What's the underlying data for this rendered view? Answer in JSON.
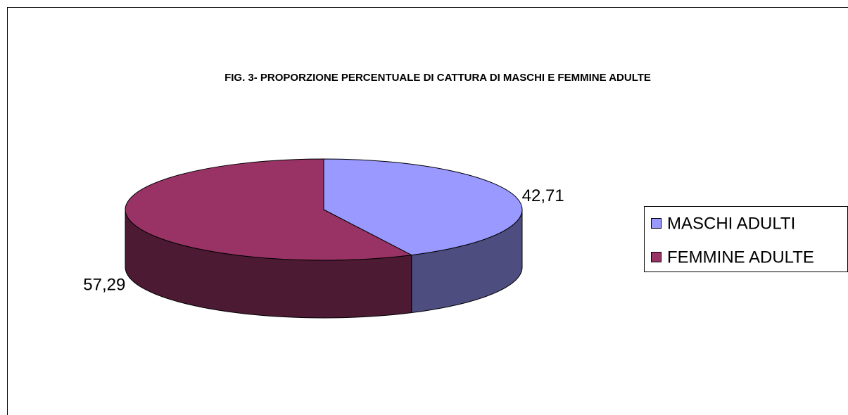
{
  "chart_data": {
    "type": "pie",
    "title": "FIG. 3- PROPORZIONE PERCENTUALE DI CATTURA DI MASCHI E FEMMINE ADULTE",
    "categories": [
      "MASCHI ADULTI",
      "FEMMINE ADULTE"
    ],
    "values": [
      42.71,
      57.29
    ],
    "value_labels": [
      "42,71",
      "57,29"
    ],
    "colors": [
      "#9999ff",
      "#993366"
    ],
    "side_colors": [
      "#4d4d80",
      "#4d1a33"
    ],
    "legend": "right"
  }
}
